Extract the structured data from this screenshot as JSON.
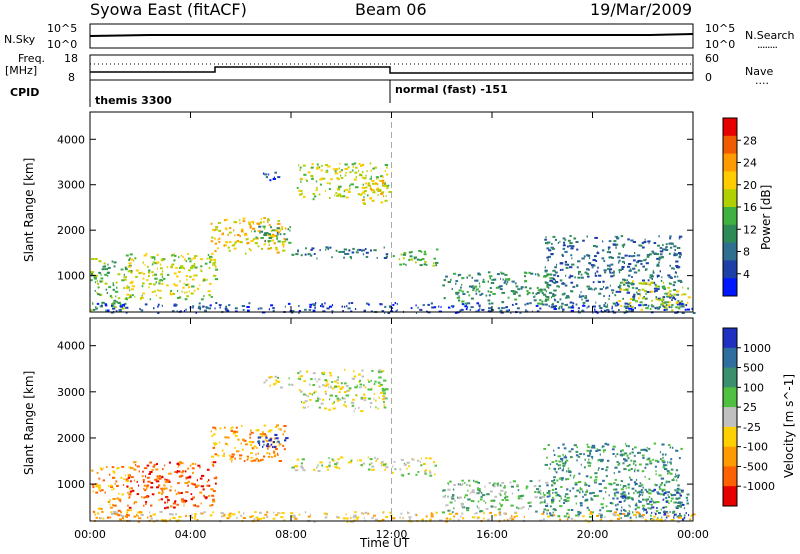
{
  "header": {
    "station": "Syowa East (fitACF)",
    "beam": "Beam 06",
    "date": "19/Mar/2009"
  },
  "status_panels": {
    "nsky_label": "N.Sky",
    "nsky_ticks": [
      "10^5",
      "10^0"
    ],
    "nsearch_label": "N.Search",
    "nsearch_ticks": [
      "10^5",
      "10^0"
    ],
    "freq_label": "Freq.",
    "freq_unit": "[MHz]",
    "freq_ticks": [
      "18",
      "8"
    ],
    "nave_label": "Nave",
    "nave_ticks": [
      "60",
      "0"
    ],
    "cpid_label": "CPID",
    "cpid_modes": [
      {
        "name": "themis 3300",
        "start_hour": 0
      },
      {
        "name": "normal (fast) -151",
        "start_hour": 12
      }
    ],
    "line_key": "........",
    "nave_key": "...."
  },
  "chart_data": [
    {
      "type": "heatmap",
      "title": "",
      "xlabel": "",
      "ylabel": "Slant Range [km]",
      "x_ticks": [
        "00:00",
        "04:00",
        "08:00",
        "12:00",
        "16:00",
        "20:00",
        "00:00"
      ],
      "xlim_hours": [
        0,
        24
      ],
      "ylim": [
        200,
        4600
      ],
      "y_ticks": [
        1000,
        2000,
        3000,
        4000
      ],
      "colorbar": {
        "label": "Power [dB]",
        "ticks": [
          "28",
          "24",
          "20",
          "16",
          "12",
          "8",
          "4"
        ],
        "colors": [
          "#e60000",
          "#f05a00",
          "#ff9a00",
          "#ffcc00",
          "#b0d000",
          "#40b040",
          "#2e8b57",
          "#2f6f8f",
          "#1f3fa8",
          "#0018ff"
        ]
      },
      "echo_regions": [
        {
          "t0": 0.0,
          "t1": 1.6,
          "r0": 250,
          "r1": 1400,
          "level": 5
        },
        {
          "t0": 1.4,
          "t1": 5.0,
          "r0": 500,
          "r1": 1500,
          "level": 4
        },
        {
          "t0": 4.8,
          "t1": 7.8,
          "r0": 1500,
          "r1": 2300,
          "level": 3
        },
        {
          "t0": 6.5,
          "t1": 8.0,
          "r0": 1700,
          "r1": 2100,
          "level": 6
        },
        {
          "t0": 6.8,
          "t1": 7.5,
          "r0": 3100,
          "r1": 3350,
          "level": 8
        },
        {
          "t0": 8.2,
          "t1": 11.8,
          "r0": 2700,
          "r1": 3500,
          "level": 4
        },
        {
          "t0": 10.8,
          "t1": 11.9,
          "r0": 2600,
          "r1": 3200,
          "level": 3
        },
        {
          "t0": 8.0,
          "t1": 11.8,
          "r0": 1400,
          "r1": 1650,
          "level": 7
        },
        {
          "t0": 12.0,
          "t1": 13.8,
          "r0": 1200,
          "r1": 1600,
          "level": 5
        },
        {
          "t0": 14.0,
          "t1": 18.5,
          "r0": 400,
          "r1": 1100,
          "level": 6
        },
        {
          "t0": 18.0,
          "t1": 23.5,
          "r0": 300,
          "r1": 1900,
          "level": 7
        },
        {
          "t0": 21.0,
          "t1": 23.8,
          "r0": 250,
          "r1": 900,
          "level": 4
        },
        {
          "t0": 0.0,
          "t1": 24.0,
          "r0": 200,
          "r1": 420,
          "level": 8
        }
      ]
    },
    {
      "type": "heatmap",
      "title": "",
      "xlabel": "Time UT",
      "ylabel": "Slant Range [km]",
      "x_ticks": [
        "00:00",
        "04:00",
        "08:00",
        "12:00",
        "16:00",
        "20:00",
        "00:00"
      ],
      "xlim_hours": [
        0,
        24
      ],
      "ylim": [
        200,
        4600
      ],
      "y_ticks": [
        1000,
        2000,
        3000,
        4000
      ],
      "colorbar": {
        "label": "Velocity [m s^-1]",
        "ticks": [
          "1000",
          "500",
          "100",
          "25",
          "-25",
          "-100",
          "-500",
          "-1000"
        ],
        "colors": [
          "#2030c0",
          "#2e6fa0",
          "#3a8f6f",
          "#50c040",
          "#c0c0c0",
          "#ffd000",
          "#ff9a00",
          "#ff6000",
          "#e60000"
        ]
      },
      "echo_regions": [
        {
          "t0": 0.0,
          "t1": 1.6,
          "r0": 250,
          "r1": 1400,
          "level": 6
        },
        {
          "t0": 1.4,
          "t1": 5.0,
          "r0": 500,
          "r1": 1500,
          "level": 7
        },
        {
          "t0": 4.8,
          "t1": 7.8,
          "r0": 1500,
          "r1": 2300,
          "level": 6
        },
        {
          "t0": 6.5,
          "t1": 8.0,
          "r0": 1800,
          "r1": 2100,
          "level": 0
        },
        {
          "t0": 6.8,
          "t1": 8.0,
          "r0": 3100,
          "r1": 3350,
          "level": 4
        },
        {
          "t0": 8.2,
          "t1": 11.8,
          "r0": 2600,
          "r1": 3500,
          "level": 4
        },
        {
          "t0": 8.0,
          "t1": 11.8,
          "r0": 1300,
          "r1": 1600,
          "level": 4
        },
        {
          "t0": 12.0,
          "t1": 13.8,
          "r0": 1200,
          "r1": 1600,
          "level": 4
        },
        {
          "t0": 14.0,
          "t1": 18.5,
          "r0": 400,
          "r1": 1100,
          "level": 3
        },
        {
          "t0": 18.0,
          "t1": 23.5,
          "r0": 300,
          "r1": 1900,
          "level": 2
        },
        {
          "t0": 21.0,
          "t1": 23.8,
          "r0": 250,
          "r1": 900,
          "level": 1
        },
        {
          "t0": 0.0,
          "t1": 24.0,
          "r0": 200,
          "r1": 420,
          "level": 5
        }
      ]
    }
  ]
}
